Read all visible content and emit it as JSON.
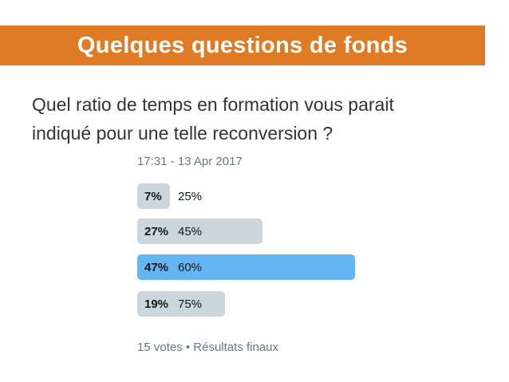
{
  "slide": {
    "title": "Quelques questions de fonds",
    "question_line1": "Quel ratio de temps en formation vous parait",
    "question_line2": "indiqué pour une telle reconversion ?"
  },
  "poll": {
    "timestamp": "17:31 - 13 Apr 2017",
    "options": [
      {
        "percent": "7%",
        "label": "25%",
        "share": 7,
        "winner": false
      },
      {
        "percent": "27%",
        "label": "45%",
        "share": 27,
        "winner": false
      },
      {
        "percent": "47%",
        "label": "60%",
        "share": 47,
        "winner": true
      },
      {
        "percent": "19%",
        "label": "75%",
        "share": 19,
        "winner": false
      }
    ],
    "footer": "15 votes • Résultats finaux"
  },
  "colors": {
    "title_bar": "#e07b25",
    "bar_default": "#ccd6dd",
    "bar_winner": "#66b5f3"
  }
}
